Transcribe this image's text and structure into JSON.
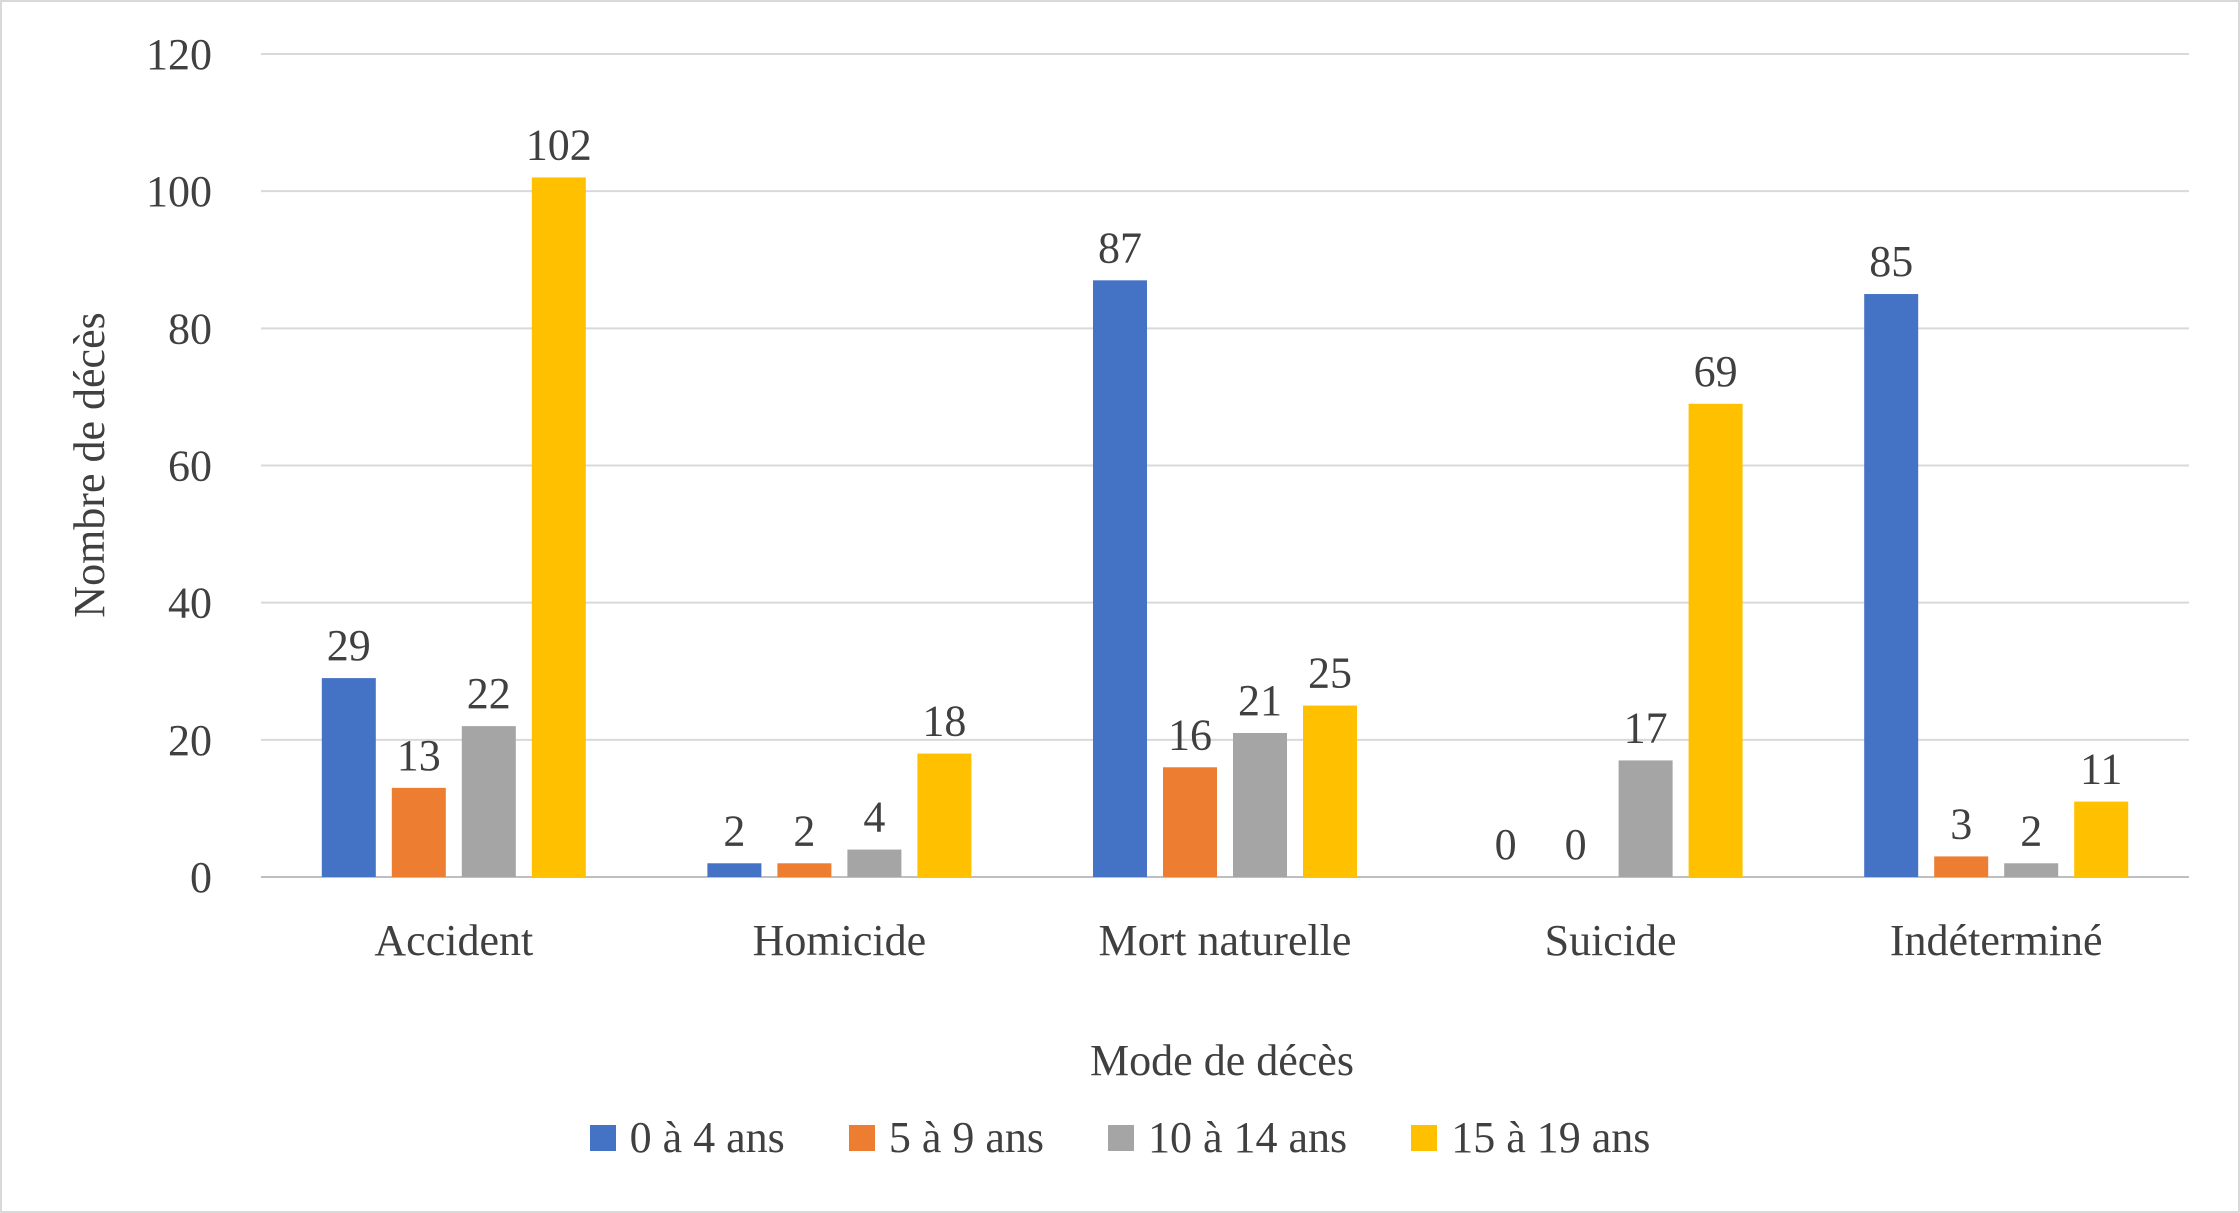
{
  "chart_data": {
    "type": "bar",
    "title": "",
    "xlabel": "Mode de décès",
    "ylabel": "Nombre de décès",
    "ylim": [
      0,
      120
    ],
    "yticks": [
      0,
      20,
      40,
      60,
      80,
      100,
      120
    ],
    "grid": true,
    "legend_position": "bottom",
    "categories": [
      "Accident",
      "Homicide",
      "Mort naturelle",
      "Suicide",
      "Indéterminé"
    ],
    "series": [
      {
        "name": "0 à 4 ans",
        "color": "#4472C4",
        "values": [
          29,
          2,
          87,
          0,
          85
        ]
      },
      {
        "name": "5 à 9 ans",
        "color": "#ED7D31",
        "values": [
          13,
          2,
          16,
          0,
          3
        ]
      },
      {
        "name": "10 à 14 ans",
        "color": "#A5A5A5",
        "values": [
          22,
          4,
          21,
          17,
          2
        ]
      },
      {
        "name": "15 à 19 ans",
        "color": "#FFC000",
        "values": [
          102,
          18,
          25,
          69,
          11
        ]
      }
    ]
  }
}
